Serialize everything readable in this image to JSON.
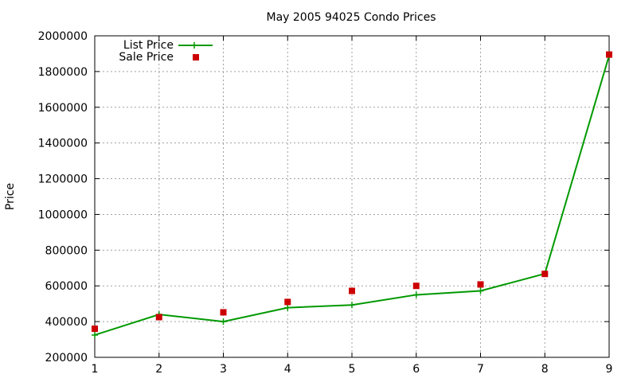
{
  "chart_data": {
    "type": "line",
    "title": "May 2005 94025 Condo Prices",
    "xlabel": "",
    "ylabel": "Price",
    "x": [
      1,
      2,
      3,
      4,
      5,
      6,
      7,
      8,
      9
    ],
    "xlim": [
      1,
      9
    ],
    "ylim": [
      200000,
      2000000
    ],
    "xticks": [
      "1",
      "2",
      "3",
      "4",
      "5",
      "6",
      "7",
      "8",
      "9"
    ],
    "yticks": [
      "200000",
      "400000",
      "600000",
      "800000",
      "1000000",
      "1200000",
      "1400000",
      "1600000",
      "1800000",
      "2000000"
    ],
    "grid": true,
    "legend_position": "top-left",
    "series": [
      {
        "name": "List Price",
        "style": "line-with-plus-markers",
        "color": "#009900",
        "values": [
          325000,
          440000,
          400000,
          478000,
          493000,
          550000,
          572000,
          668000,
          1890000
        ]
      },
      {
        "name": "Sale Price",
        "style": "square-markers",
        "color": "#cc0000",
        "values": [
          360000,
          425000,
          452000,
          510000,
          572000,
          600000,
          608000,
          667000,
          1895000
        ]
      }
    ]
  }
}
